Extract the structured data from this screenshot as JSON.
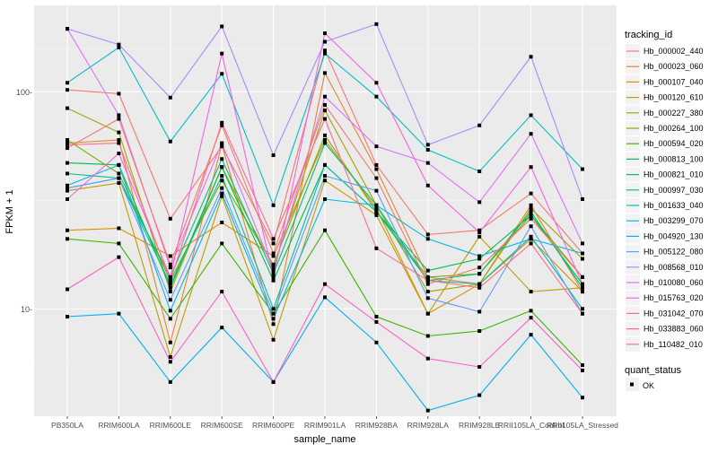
{
  "chart_data": {
    "type": "line",
    "xlabel": "sample_name",
    "ylabel": "FPKM + 1",
    "y_scale": "log10",
    "ylim": [
      3.2,
      250
    ],
    "y_ticks": [
      10,
      100
    ],
    "y_tick_labels": [
      "10-",
      "100-"
    ],
    "grid": true,
    "legend_placement": "right",
    "categories": [
      "PB350LA",
      "RRIM600LA",
      "RRIM600LE",
      "RRIM600SE",
      "RRIM600PE",
      "RRIM901LA",
      "RRIM928BA",
      "RRIM928LA",
      "RRIM928LE",
      "RRII105LA_Control",
      "RRII105LA_Stressed"
    ],
    "x_tick_labels": [
      "PB350LA",
      "RRIM600LA",
      "RRIM600LE",
      "RRIM600SE",
      "RRIM600PE",
      "RRIM901LA",
      "RRIM928BA",
      "RRIM928LA",
      "RRIM928LE",
      "RRII105LA_Control",
      "RRII105LA_Stressed"
    ],
    "legend_title": "tracking_id",
    "shape_legend": {
      "title": "quant_status",
      "label": "OK"
    },
    "series": [
      {
        "name": "Hb_000002_440",
        "color": "#F8766D",
        "values": [
          102,
          98,
          26,
          56,
          20,
          155,
          46,
          22,
          23,
          34,
          18
        ]
      },
      {
        "name": "Hb_000023_060",
        "color": "#EA8331",
        "values": [
          58,
          60,
          7.0,
          57,
          8.5,
          122,
          44,
          14,
          13,
          30,
          12
        ]
      },
      {
        "name": "Hb_000107_040",
        "color": "#D89000",
        "values": [
          23,
          23.5,
          17.5,
          25,
          17.5,
          60,
          29,
          9.5,
          13,
          21,
          12
        ]
      },
      {
        "name": "Hb_000120_610",
        "color": "#C09B00",
        "values": [
          35,
          38,
          6.0,
          33,
          7.2,
          39,
          27,
          9.5,
          21.5,
          12,
          12.5
        ]
      },
      {
        "name": "Hb_000227_380",
        "color": "#A3A500",
        "values": [
          84,
          65,
          12,
          45,
          15.5,
          82,
          30,
          12,
          13,
          29,
          17
        ]
      },
      {
        "name": "Hb_000264_100",
        "color": "#7CAE00",
        "values": [
          60,
          42,
          13.5,
          39,
          16,
          63,
          28,
          14,
          14.5,
          27,
          14
        ]
      },
      {
        "name": "Hb_000594_020",
        "color": "#39B600",
        "values": [
          21,
          20,
          9.0,
          20,
          9.5,
          23,
          9.2,
          7.5,
          7.9,
          9.8,
          5.5
        ]
      },
      {
        "name": "Hb_000813_100",
        "color": "#00BB4E",
        "values": [
          47,
          46,
          12.5,
          45,
          13.5,
          46,
          28,
          15,
          17,
          27,
          13
        ]
      },
      {
        "name": "Hb_000821_010",
        "color": "#00BF7D",
        "values": [
          42,
          40,
          14,
          49,
          14.5,
          58,
          30,
          13.5,
          14.5,
          28,
          12.5
        ]
      },
      {
        "name": "Hb_000997_030",
        "color": "#00C1A3",
        "values": [
          36,
          40,
          13,
          41,
          10,
          46,
          28,
          13.5,
          13,
          21.5,
          10
        ]
      },
      {
        "name": "Hb_001633_040",
        "color": "#00BFC4",
        "values": [
          110,
          160,
          59,
          121,
          30,
          150,
          95,
          54,
          43,
          78,
          44
        ]
      },
      {
        "name": "Hb_003299_070",
        "color": "#00B9E3",
        "values": [
          37,
          46,
          9.8,
          34,
          9.0,
          32,
          30,
          21,
          17.5,
          21,
          18
        ]
      },
      {
        "name": "Hb_004920_130",
        "color": "#00ADFA",
        "values": [
          9.2,
          9.5,
          4.6,
          8.2,
          4.6,
          11.3,
          7.0,
          3.4,
          4.0,
          7.6,
          3.9
        ]
      },
      {
        "name": "Hb_005122_080",
        "color": "#619CFF",
        "values": [
          36,
          40,
          11.0,
          36,
          9.5,
          41,
          35,
          11.2,
          9.7,
          24,
          9.5
        ]
      },
      {
        "name": "Hb_008568_010",
        "color": "#AE87FF",
        "values": [
          195,
          165,
          94,
          200,
          51,
          170,
          205,
          57,
          70,
          145,
          32
        ]
      },
      {
        "name": "Hb_010080_060",
        "color": "#DB72FB",
        "values": [
          195,
          78,
          15.5,
          58,
          15,
          95,
          56,
          47,
          31,
          64,
          20
        ]
      },
      {
        "name": "Hb_015763_020",
        "color": "#F564E3",
        "values": [
          32,
          52,
          14,
          150,
          14,
          186,
          110,
          37,
          22.5,
          45,
          13
        ]
      },
      {
        "name": "Hb_031042_070",
        "color": "#FF61C3",
        "values": [
          12.3,
          17.3,
          5.7,
          12.0,
          4.6,
          13.0,
          8.7,
          5.9,
          5.4,
          9.1,
          5.2
        ]
      },
      {
        "name": "Hb_033883_060",
        "color": "#FF6C91",
        "values": [
          57,
          58,
          13.5,
          72,
          21,
          75,
          19,
          13.5,
          12.5,
          20,
          9.5
        ]
      },
      {
        "name": "Hb_110482_010",
        "color": "#F8766D",
        "values": [
          55,
          75,
          16,
          70,
          18,
          87,
          40,
          13,
          15.5,
          26,
          14
        ]
      }
    ]
  }
}
